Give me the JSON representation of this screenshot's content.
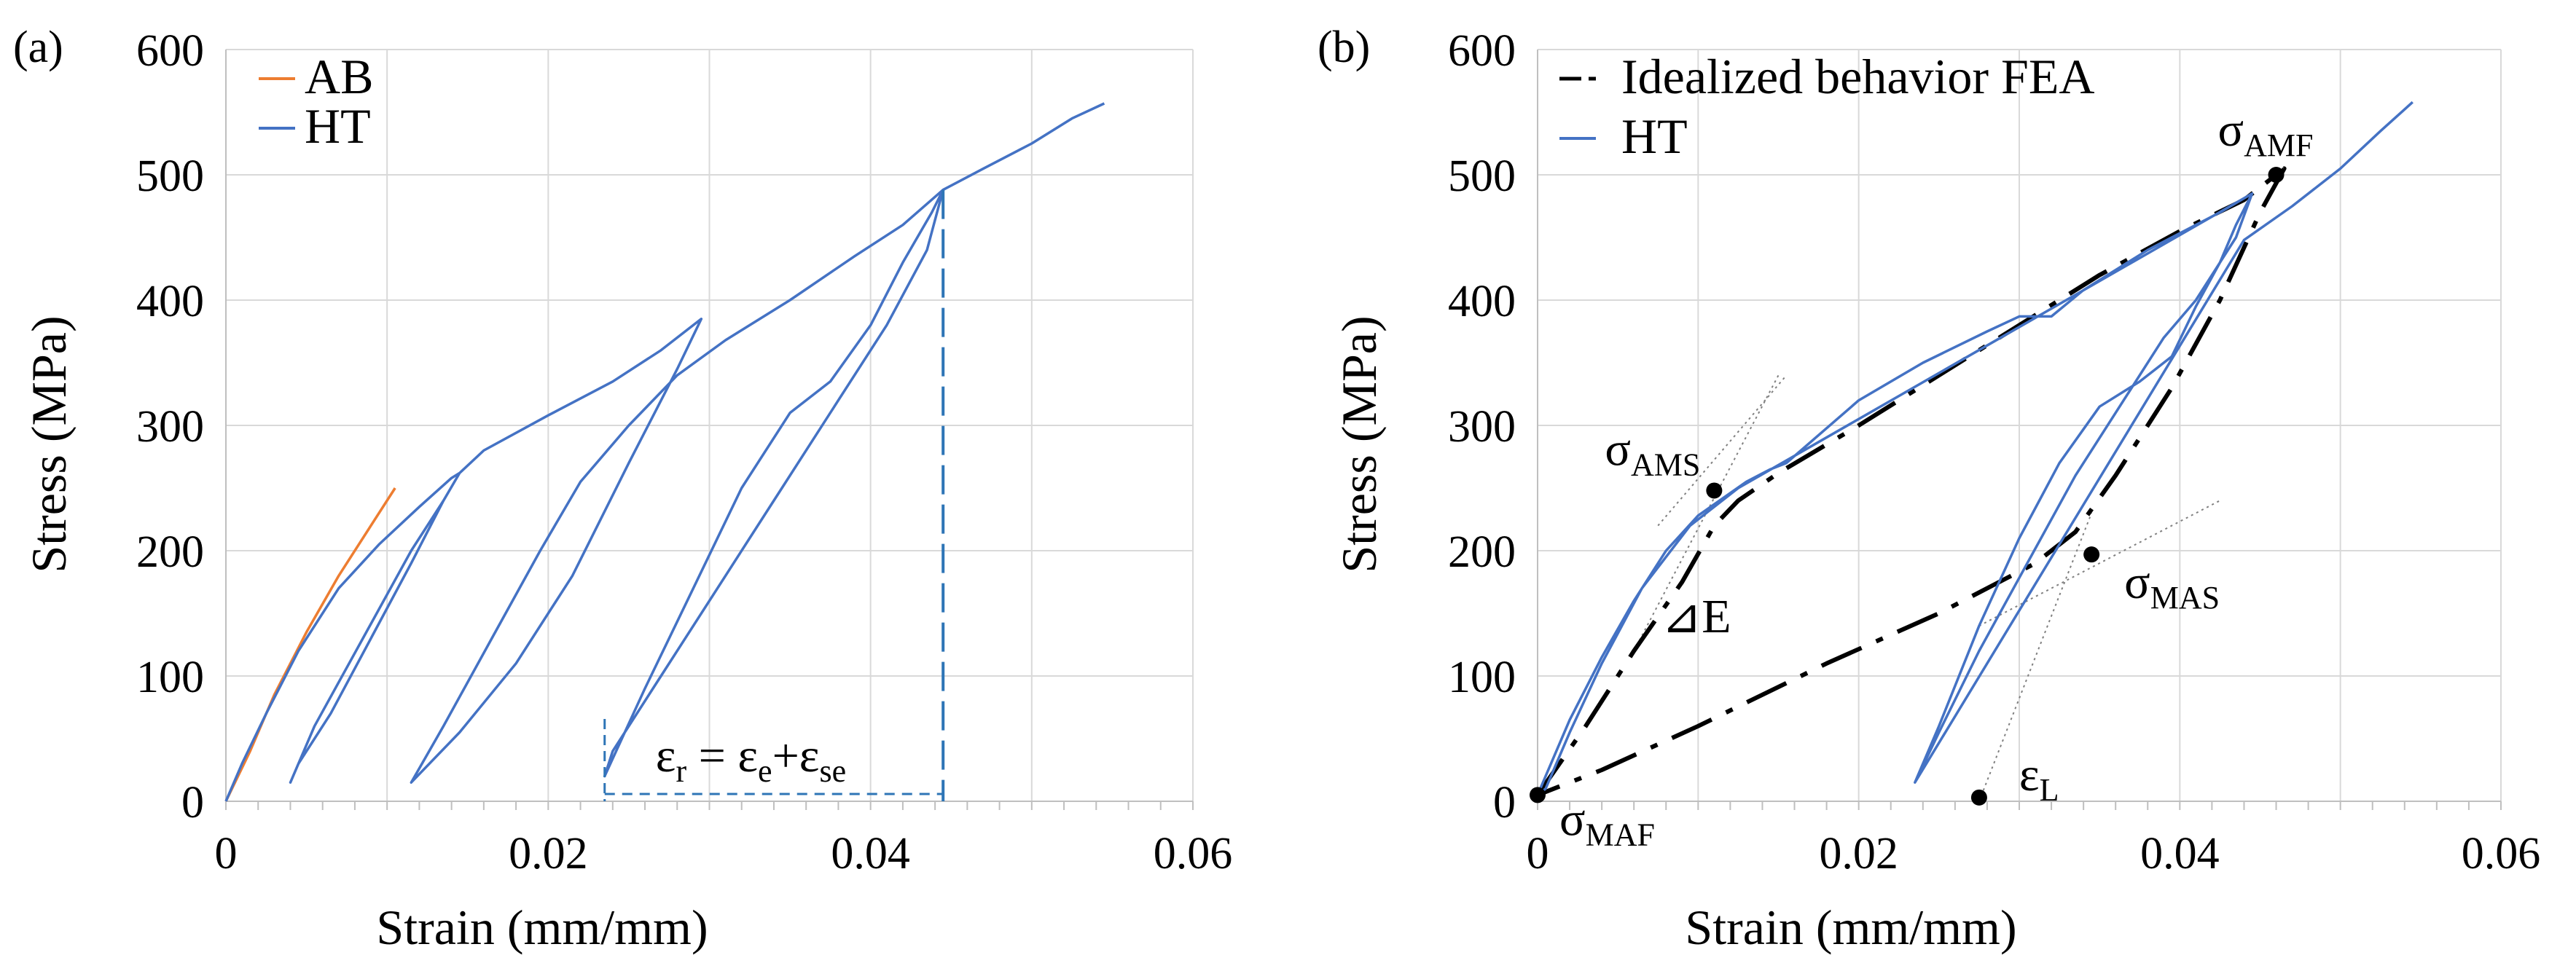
{
  "chart_data": [
    {
      "type": "line",
      "panel_label": "(a)",
      "xlabel": "Strain (mm/mm)",
      "ylabel": "Stress (MPa)",
      "xlim": [
        0,
        0.06
      ],
      "ylim": [
        0,
        600
      ],
      "xticks": [
        0,
        0.02,
        0.04,
        0.06
      ],
      "xtick_labels": [
        "0",
        "0.02",
        "0.04",
        "0.06"
      ],
      "yticks": [
        0,
        100,
        200,
        300,
        400,
        500,
        600
      ],
      "ytick_labels": [
        "0",
        "100",
        "200",
        "300",
        "400",
        "500",
        "600"
      ],
      "grid": true,
      "legend_position": "top-left",
      "series": [
        {
          "name": "AB",
          "color": "#ED7D31",
          "points": [
            [
              0,
              0
            ],
            [
              0.0015,
              40
            ],
            [
              0.003,
              85
            ],
            [
              0.005,
              135
            ],
            [
              0.007,
              180
            ],
            [
              0.009,
              220
            ],
            [
              0.0105,
              250
            ]
          ]
        },
        {
          "name": "HT",
          "color": "#4472C4",
          "points": [
            [
              0,
              0
            ],
            [
              0.001,
              30
            ],
            [
              0.0025,
              70
            ],
            [
              0.0045,
              120
            ],
            [
              0.007,
              170
            ],
            [
              0.0095,
              205
            ],
            [
              0.012,
              235
            ],
            [
              0.014,
              258
            ],
            [
              0.0145,
              262
            ],
            [
              0.0135,
              240
            ],
            [
              0.0115,
              190
            ],
            [
              0.009,
              130
            ],
            [
              0.0065,
              70
            ],
            [
              0.0045,
              30
            ],
            [
              0.004,
              15
            ],
            [
              0.0055,
              60
            ],
            [
              0.0085,
              130
            ],
            [
              0.0115,
              200
            ],
            [
              0.0135,
              240
            ],
            [
              0.0145,
              262
            ],
            [
              0.016,
              280
            ],
            [
              0.02,
              308
            ],
            [
              0.024,
              335
            ],
            [
              0.027,
              360
            ],
            [
              0.0295,
              385
            ],
            [
              0.028,
              345
            ],
            [
              0.025,
              270
            ],
            [
              0.0215,
              180
            ],
            [
              0.018,
              110
            ],
            [
              0.0145,
              55
            ],
            [
              0.0115,
              15
            ],
            [
              0.0135,
              60
            ],
            [
              0.0165,
              130
            ],
            [
              0.0195,
              200
            ],
            [
              0.022,
              255
            ],
            [
              0.025,
              300
            ],
            [
              0.028,
              340
            ],
            [
              0.031,
              368
            ],
            [
              0.035,
              400
            ],
            [
              0.039,
              435
            ],
            [
              0.042,
              460
            ],
            [
              0.0445,
              488
            ],
            [
              0.0435,
              440
            ],
            [
              0.041,
              380
            ],
            [
              0.038,
              320
            ],
            [
              0.0345,
              250
            ],
            [
              0.031,
              180
            ],
            [
              0.027,
              100
            ],
            [
              0.024,
              40
            ],
            [
              0.0235,
              20
            ],
            [
              0.026,
              90
            ],
            [
              0.029,
              170
            ],
            [
              0.032,
              250
            ],
            [
              0.035,
              310
            ],
            [
              0.0375,
              335
            ],
            [
              0.04,
              380
            ],
            [
              0.042,
              430
            ],
            [
              0.0438,
              470
            ],
            [
              0.0445,
              488
            ],
            [
              0.047,
              505
            ],
            [
              0.05,
              525
            ],
            [
              0.0525,
              545
            ],
            [
              0.0545,
              557
            ]
          ]
        }
      ],
      "annotation": {
        "text": "ε",
        "sub": "r",
        "middle": " = ε",
        "sub_e": "e",
        "plus": "+ε",
        "sub_se": "se",
        "x_start": 0.0235,
        "x_end": 0.0445,
        "y": 25,
        "color": "#2E75B6"
      }
    },
    {
      "type": "line",
      "panel_label": "(b)",
      "xlabel": "Strain (mm/mm)",
      "ylabel": "Stress (MPa)",
      "xlim": [
        0,
        0.06
      ],
      "ylim": [
        0,
        600
      ],
      "xticks": [
        0,
        0.02,
        0.04,
        0.06
      ],
      "xtick_labels": [
        "0",
        "0.02",
        "0.04",
        "0.06"
      ],
      "yticks": [
        0,
        100,
        200,
        300,
        400,
        500,
        600
      ],
      "ytick_labels": [
        "0",
        "100",
        "200",
        "300",
        "400",
        "500",
        "600"
      ],
      "grid": true,
      "legend_position": "top-left",
      "series": [
        {
          "name": "Idealized behavior FEA",
          "color": "#000000",
          "style": "dashed",
          "points": [
            [
              0,
              5
            ],
            [
              0.003,
              60
            ],
            [
              0.006,
              120
            ],
            [
              0.009,
              175
            ],
            [
              0.011,
              220
            ],
            [
              0.0125,
              240
            ],
            [
              0.015,
              262
            ],
            [
              0.02,
              300
            ],
            [
              0.025,
              340
            ],
            [
              0.03,
              380
            ],
            [
              0.035,
              420
            ],
            [
              0.04,
              455
            ],
            [
              0.044,
              480
            ],
            [
              0.0465,
              505
            ],
            [
              0.045,
              470
            ],
            [
              0.0425,
              400
            ],
            [
              0.0395,
              330
            ],
            [
              0.036,
              260
            ],
            [
              0.0335,
              215
            ],
            [
              0.031,
              190
            ],
            [
              0.025,
              150
            ],
            [
              0.018,
              110
            ],
            [
              0.01,
              60
            ],
            [
              0.004,
              25
            ],
            [
              0,
              5
            ]
          ]
        },
        {
          "name": "HT",
          "color": "#4472C4",
          "points": [
            [
              0.0235,
              15
            ],
            [
              0.025,
              60
            ],
            [
              0.0275,
              140
            ],
            [
              0.03,
              210
            ],
            [
              0.0325,
              270
            ],
            [
              0.035,
              315
            ],
            [
              0.0375,
              335
            ],
            [
              0.0395,
              355
            ],
            [
              0.041,
              395
            ],
            [
              0.0425,
              430
            ],
            [
              0.0435,
              450
            ],
            [
              0.0445,
              485
            ],
            [
              0.0425,
              470
            ],
            [
              0.038,
              440
            ],
            [
              0.034,
              408
            ],
            [
              0.032,
              387
            ],
            [
              0.03,
              387
            ],
            [
              0.028,
              375
            ],
            [
              0.024,
              350
            ],
            [
              0.02,
              320
            ],
            [
              0.0155,
              270
            ],
            [
              0.0145,
              265
            ],
            [
              0.013,
              255
            ],
            [
              0.01,
              228
            ],
            [
              0.008,
              200
            ],
            [
              0.006,
              160
            ],
            [
              0.004,
              115
            ],
            [
              0.002,
              65
            ],
            [
              0.0005,
              20
            ],
            [
              0,
              5
            ],
            [
              0.0005,
              10
            ],
            [
              0.002,
              55
            ],
            [
              0.004,
              110
            ],
            [
              0.0065,
              170
            ],
            [
              0.0095,
              220
            ],
            [
              0.0125,
              250
            ],
            [
              0.0445,
              485
            ],
            [
              0.0435,
              460
            ],
            [
              0.0425,
              430
            ],
            [
              0.041,
              400
            ],
            [
              0.039,
              370
            ],
            [
              0.0365,
              320
            ],
            [
              0.0335,
              260
            ],
            [
              0.0305,
              190
            ],
            [
              0.0275,
              120
            ],
            [
              0.025,
              55
            ],
            [
              0.0235,
              15
            ],
            [
              0.044,
              448
            ],
            [
              0.047,
              475
            ],
            [
              0.05,
              505
            ],
            [
              0.0525,
              535
            ],
            [
              0.0545,
              558
            ]
          ]
        }
      ],
      "markers": [
        {
          "name": "sigma-AMS",
          "label": "σ",
          "sub": "AMS",
          "x": 0.011,
          "y": 248
        },
        {
          "name": "sigma-AMF",
          "label": "σ",
          "sub": "AMF",
          "x": 0.046,
          "y": 500
        },
        {
          "name": "sigma-MAS",
          "label": "σ",
          "sub": "MAS",
          "x": 0.0345,
          "y": 197
        },
        {
          "name": "sigma-MAF",
          "label": "σ",
          "sub": "MAF",
          "x": 0,
          "y": 5
        },
        {
          "name": "epsilon-L",
          "label": "ε",
          "sub": "L",
          "x": 0.0275,
          "y": 3
        }
      ],
      "modulus_label": "⊿E",
      "tangent_lines": [
        {
          "from": [
            0.0075,
            220
          ],
          "to": [
            0.0155,
            340
          ]
        },
        {
          "from": [
            0.006,
            120
          ],
          "to": [
            0.015,
            340
          ]
        },
        {
          "from": [
            0.0275,
            140
          ],
          "to": [
            0.0425,
            240
          ]
        },
        {
          "from": [
            0.0275,
            0
          ],
          "to": [
            0.0345,
            230
          ]
        }
      ]
    }
  ]
}
